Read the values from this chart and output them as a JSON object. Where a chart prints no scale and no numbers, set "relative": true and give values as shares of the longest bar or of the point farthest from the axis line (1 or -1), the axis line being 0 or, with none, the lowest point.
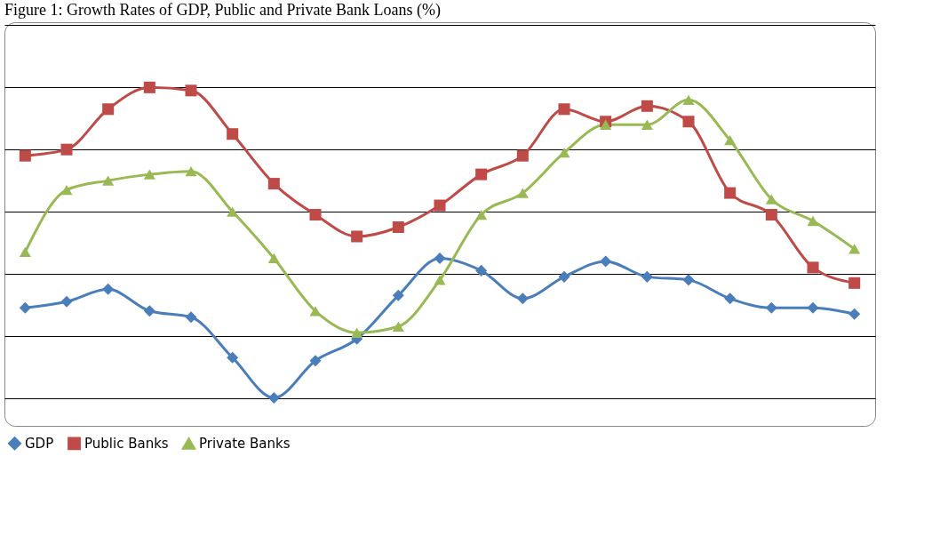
{
  "chart_data": {
    "type": "line",
    "title": "Figure 1: Growth Rates of GDP, Public and Private Bank Loans (%)",
    "relative": true,
    "grid": "y",
    "legend": "bottom",
    "line_style": "solid",
    "categories": [
      null,
      null,
      null,
      null,
      null,
      null,
      null,
      null,
      null,
      null,
      null,
      null,
      null,
      null,
      null,
      null,
      null,
      null,
      null,
      null,
      null
    ],
    "series": [
      {
        "name": "GDP",
        "color": "#4a7ebb",
        "marker": "diamond",
        "values": [
          0.29,
          0.31,
          0.35,
          0.28,
          0.26,
          0.13,
          0,
          0.12,
          0.19,
          0.33,
          0.45,
          0.41,
          0.32,
          0.39,
          0.44,
          0.39,
          0.38,
          0.32,
          0.29,
          0.29,
          0.27
        ]
      },
      {
        "name": "Public Banks",
        "color": "#be4b48",
        "marker": "square",
        "values": [
          0.78,
          0.8,
          0.93,
          1,
          0.99,
          0.85,
          0.69,
          0.59,
          0.52,
          0.55,
          0.62,
          0.72,
          0.78,
          0.93,
          0.89,
          0.94,
          0.89,
          0.66,
          0.59,
          0.42,
          0.37
        ]
      },
      {
        "name": "Private Banks",
        "color": "#98b954",
        "marker": "triangle",
        "values": [
          0.47,
          0.67,
          0.7,
          0.72,
          0.73,
          0.6,
          0.45,
          0.28,
          0.21,
          0.23,
          0.38,
          0.59,
          0.66,
          0.79,
          0.88,
          0.88,
          0.96,
          0.83,
          0.64,
          0.57,
          0.48
        ]
      }
    ]
  }
}
